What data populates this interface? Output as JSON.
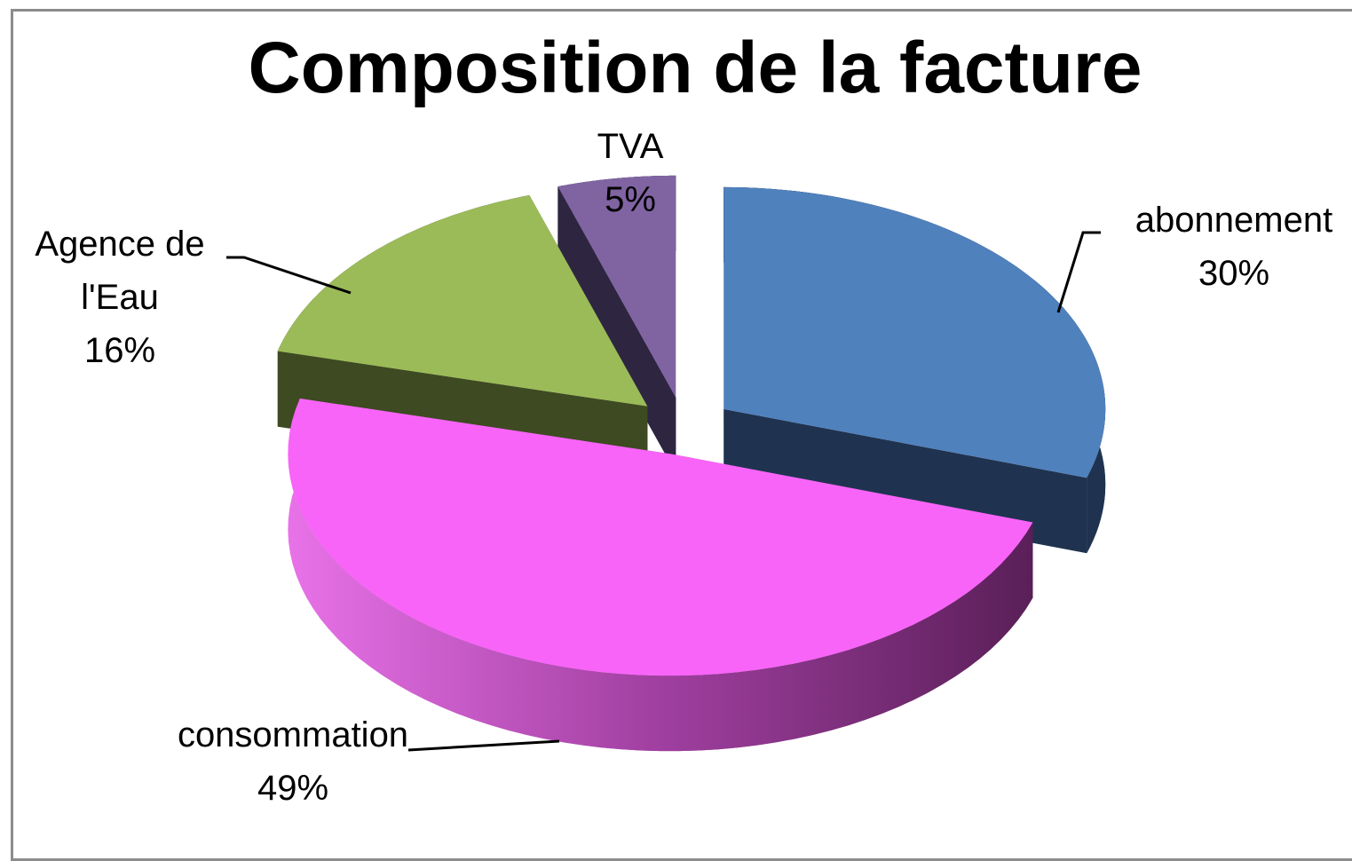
{
  "chart_data": {
    "type": "pie",
    "title": "Composition de la facture",
    "categories": [
      "abonnement",
      "consommation",
      "Agence de l'Eau",
      "TVA"
    ],
    "values": [
      30,
      49,
      16,
      5
    ],
    "value_labels": [
      "30%",
      "49%",
      "16%",
      "5%"
    ],
    "colors": [
      "#4f81bd",
      "#f864f8",
      "#9bbb59",
      "#8064a2"
    ]
  }
}
